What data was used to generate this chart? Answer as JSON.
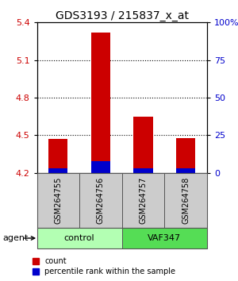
{
  "title": "GDS3193 / 215837_x_at",
  "samples": [
    "GSM264755",
    "GSM264756",
    "GSM264757",
    "GSM264758"
  ],
  "groups": [
    {
      "label": "control",
      "indices": [
        0,
        1
      ],
      "color": "#b3ffb3"
    },
    {
      "label": "VAF347",
      "indices": [
        2,
        3
      ],
      "color": "#55dd55"
    }
  ],
  "bar_base": 4.2,
  "count_tops": [
    4.47,
    5.32,
    4.65,
    4.48
  ],
  "percentile_tops": [
    4.235,
    4.295,
    4.235,
    4.235
  ],
  "count_color": "#cc0000",
  "percentile_color": "#0000cc",
  "ylim_left": [
    4.2,
    5.4
  ],
  "yticks_left": [
    4.2,
    4.5,
    4.8,
    5.1,
    5.4
  ],
  "ytick_labels_left": [
    "4.2",
    "4.5",
    "4.8",
    "5.1",
    "5.4"
  ],
  "yticks_right_vals": [
    4.2,
    4.5,
    4.8,
    5.1,
    5.4
  ],
  "ytick_labels_right": [
    "0",
    "25",
    "50",
    "75",
    "100%"
  ],
  "dotted_yticks": [
    4.5,
    4.8,
    5.1
  ],
  "bar_width": 0.45,
  "agent_label": "agent",
  "legend_count": "count",
  "legend_percentile": "percentile rank within the sample",
  "count_color_label": "#cc0000",
  "percentile_color_label": "#0000cc",
  "title_fontsize": 10,
  "tick_fontsize": 8,
  "label_fontsize": 8,
  "sample_fontsize": 7,
  "group_fontsize": 8,
  "legend_fontsize": 7
}
